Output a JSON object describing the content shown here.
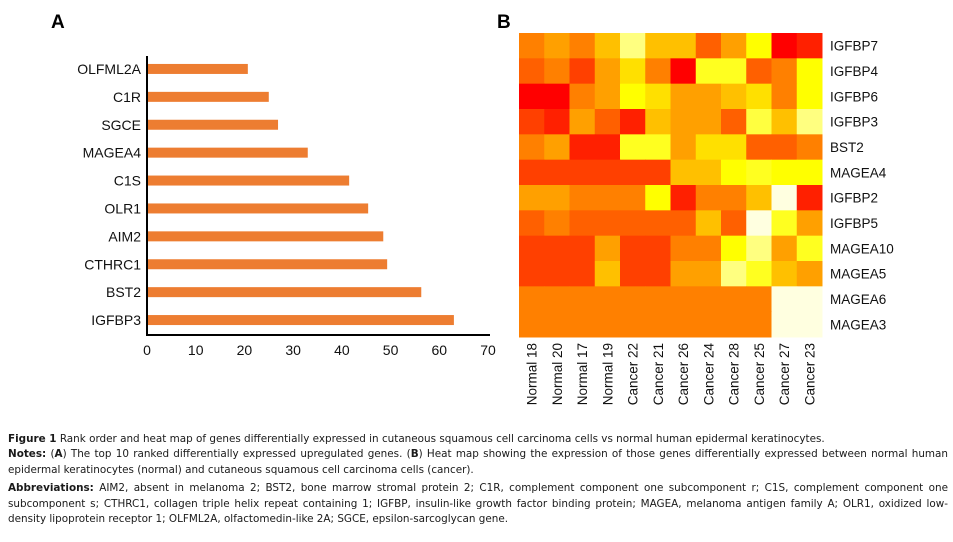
{
  "chart_data": [
    {
      "panel": "A",
      "type": "bar",
      "orientation": "horizontal",
      "title": "",
      "xlabel": "",
      "ylabel": "",
      "categories": [
        "OLFML2A",
        "C1R",
        "SGCE",
        "MAGEA4",
        "C1S",
        "OLR1",
        "AIM2",
        "CTHRC1",
        "BST2",
        "IGFBP3"
      ],
      "values": [
        20.7,
        25.0,
        26.9,
        33.0,
        41.5,
        45.4,
        48.5,
        49.3,
        56.3,
        63.0
      ],
      "xlim": [
        0,
        70
      ],
      "xticks": [
        "0",
        "10",
        "20",
        "30",
        "40",
        "50",
        "60",
        "70"
      ],
      "grid": false,
      "bar_color": "#ED7D31"
    },
    {
      "panel": "B",
      "type": "heatmap",
      "title": "",
      "columns": [
        "Normal 18",
        "Normal 20",
        "Normal 17",
        "Normal 19",
        "Cancer 22",
        "Cancer 21",
        "Cancer 26",
        "Cancer 24",
        "Cancer 28",
        "Cancer 25",
        "Cancer 27",
        "Cancer 23"
      ],
      "rows": [
        "IGFBP7",
        "IGFBP4",
        "IGFBP6",
        "IGFBP3",
        "BST2",
        "MAGEA4",
        "IGFBP2",
        "IGFBP5",
        "MAGEA10",
        "MAGEA5",
        "MAGEA6",
        "MAGEA3"
      ],
      "colormap": "red-orange-yellow-white",
      "cells": [
        [
          "#FF8000",
          "#FFA000",
          "#FF8000",
          "#FFC000",
          "#FFFF80",
          "#FFC000",
          "#FFC000",
          "#FF6000",
          "#FFA000",
          "#FFFF00",
          "#FF0000",
          "#FF2000"
        ],
        [
          "#FF6000",
          "#FF8000",
          "#FF4000",
          "#FFA000",
          "#FFE000",
          "#FF8000",
          "#FF0000",
          "#FFFF20",
          "#FFFF20",
          "#FF6000",
          "#FF8000",
          "#FFFF00"
        ],
        [
          "#FF0000",
          "#FF0000",
          "#FF8000",
          "#FFA000",
          "#FFFF00",
          "#FFE000",
          "#FFA000",
          "#FFA000",
          "#FFC000",
          "#FFE000",
          "#FF8000",
          "#FFFF00"
        ],
        [
          "#FF4000",
          "#FF2000",
          "#FFA000",
          "#FF6000",
          "#FF2000",
          "#FFC000",
          "#FFA000",
          "#FFA000",
          "#FF6000",
          "#FFFF40",
          "#FFC000",
          "#FFFF80"
        ],
        [
          "#FF8000",
          "#FFA000",
          "#FF2000",
          "#FF2000",
          "#FFFF20",
          "#FFFF20",
          "#FFA000",
          "#FFE000",
          "#FFE000",
          "#FF6000",
          "#FF6000",
          "#FF8000"
        ],
        [
          "#FF4000",
          "#FF4000",
          "#FF4000",
          "#FF4000",
          "#FF4000",
          "#FF4000",
          "#FFC000",
          "#FFC000",
          "#FFFF00",
          "#FFFF20",
          "#FFFF00",
          "#FFFF00"
        ],
        [
          "#FFA000",
          "#FFA000",
          "#FF8000",
          "#FF8000",
          "#FF8000",
          "#FFFF00",
          "#FF2000",
          "#FF8000",
          "#FF8000",
          "#FFC000",
          "#FFFFE0",
          "#FF2000"
        ],
        [
          "#FF6000",
          "#FF8000",
          "#FF6000",
          "#FF6000",
          "#FF6000",
          "#FF6000",
          "#FF6000",
          "#FFC000",
          "#FF6000",
          "#FFFFE0",
          "#FFFF20",
          "#FFA000"
        ],
        [
          "#FF4000",
          "#FF4000",
          "#FF4000",
          "#FFA000",
          "#FF4000",
          "#FF4000",
          "#FF8000",
          "#FF8000",
          "#FFFF00",
          "#FFFF80",
          "#FFA000",
          "#FFFF20"
        ],
        [
          "#FF4000",
          "#FF4000",
          "#FF4000",
          "#FFC000",
          "#FF4000",
          "#FF4000",
          "#FFA000",
          "#FFA000",
          "#FFFF80",
          "#FFFF20",
          "#FFC000",
          "#FFA000"
        ],
        [
          "#FF8000",
          "#FF8000",
          "#FF8000",
          "#FF8000",
          "#FF8000",
          "#FF8000",
          "#FF8000",
          "#FF8000",
          "#FF8000",
          "#FF8000",
          "#FFFFE0",
          "#FFFFE0"
        ],
        [
          "#FF8000",
          "#FF8000",
          "#FF8000",
          "#FF8000",
          "#FF8000",
          "#FF8000",
          "#FF8000",
          "#FF8000",
          "#FF8000",
          "#FF8000",
          "#FFFFE0",
          "#FFFFE0"
        ]
      ]
    }
  ],
  "panels": {
    "a_label": "A",
    "b_label": "B"
  },
  "caption": {
    "figure_label": "Figure 1",
    "figure_text": " Rank order and heat map of genes differentially expressed in cutaneous squamous cell carcinoma cells vs normal human epidermal keratinocytes.",
    "notes_label": "Notes:",
    "notes_part1": " (",
    "notes_a": "A",
    "notes_part2": ") The top 10 ranked differentially expressed upregulated genes. (",
    "notes_b": "B",
    "notes_part3": ") Heat map showing the expression of those genes differentially expressed between normal human epidermal keratinocytes (normal) and cutaneous squamous cell carcinoma cells (cancer).",
    "abbrev_label": "Abbreviations:",
    "abbrev_text": " AIM2, absent in melanoma 2; BST2, bone marrow stromal protein 2; C1R, complement component one subcomponent r; C1S, complement component one subcomponent s; CTHRC1, collagen triple helix repeat containing 1; IGFBP, insulin-like growth factor binding protein; MAGEA, melanoma antigen family A; OLR1, oxidized low-density lipoprotein receptor 1; OLFML2A, olfactomedin-like 2A; SGCE, epsilon-sarcoglycan gene."
  }
}
